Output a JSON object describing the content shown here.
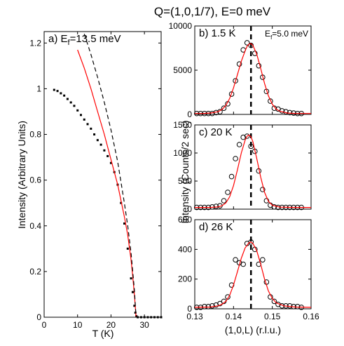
{
  "figure": {
    "title": "Q=(1,0,1/7), E=0 meV"
  },
  "colors": {
    "fit": "#ff0000",
    "dashed": "#000000",
    "data": "#000000"
  },
  "chart_data": [
    {
      "type": "scatter",
      "panel_label": "a)",
      "annotation": "E_f=13.5 meV",
      "xlabel": "T (K)",
      "ylabel": "Intensity (Arbitrary Units)",
      "xlim": [
        0,
        35
      ],
      "ylim": [
        0,
        1.25
      ],
      "xticks": [
        0,
        10,
        20,
        30
      ],
      "yticks": [
        0,
        0.2,
        0.4,
        0.6,
        0.8,
        1,
        1.2
      ],
      "series": [
        {
          "style": "points",
          "x": [
            3,
            4,
            5,
            6,
            7,
            8,
            9,
            10,
            11,
            12,
            13,
            14,
            15,
            16,
            17,
            18,
            19,
            20,
            21,
            22,
            23,
            24,
            25,
            26,
            26.5,
            27,
            27.3,
            27.6,
            28,
            29,
            30,
            31,
            32,
            33,
            34,
            35
          ],
          "y": [
            0.995,
            0.99,
            0.98,
            0.97,
            0.955,
            0.94,
            0.925,
            0.905,
            0.885,
            0.865,
            0.845,
            0.825,
            0.8,
            0.775,
            0.755,
            0.73,
            0.705,
            0.675,
            0.635,
            0.58,
            0.5,
            0.41,
            0.3,
            0.17,
            0.11,
            0.05,
            0.02,
            0.005,
            0,
            0,
            0,
            0,
            0,
            0,
            0,
            0
          ]
        },
        {
          "style": "fit",
          "x": [
            10,
            12,
            14,
            16,
            18,
            20,
            22,
            24,
            25,
            26,
            26.5,
            27,
            27.2,
            27.4,
            27.5
          ],
          "y": [
            1.17,
            1.09,
            1.0,
            0.9,
            0.8,
            0.69,
            0.58,
            0.44,
            0.36,
            0.25,
            0.18,
            0.1,
            0.06,
            0.02,
            0
          ]
        },
        {
          "style": "dashed",
          "x": [
            12,
            14,
            16,
            18,
            20,
            22,
            24,
            25,
            26,
            27,
            27.5
          ],
          "y": [
            1.24,
            1.15,
            1.05,
            0.94,
            0.82,
            0.68,
            0.5,
            0.4,
            0.28,
            0.12,
            0
          ]
        }
      ]
    },
    {
      "type": "scatter",
      "panel_label": "b) 1.5 K",
      "annotation": "E_f=5.0 meV",
      "xlim": [
        0.13,
        0.16
      ],
      "ylim": [
        0,
        10000
      ],
      "yticks": [
        0,
        5000,
        10000
      ],
      "vline": 0.1445,
      "series": [
        {
          "style": "points",
          "x": [
            0.1305,
            0.1315,
            0.1325,
            0.1335,
            0.1345,
            0.1355,
            0.1365,
            0.1375,
            0.1385,
            0.1395,
            0.1405,
            0.1415,
            0.1425,
            0.1435,
            0.1445,
            0.1455,
            0.1465,
            0.1475,
            0.1485,
            0.1495,
            0.1505,
            0.1515,
            0.1525,
            0.1535,
            0.1545,
            0.1555,
            0.1565,
            0.1575
          ],
          "y": [
            100,
            100,
            100,
            100,
            100,
            200,
            300,
            700,
            1200,
            2300,
            3800,
            5700,
            7300,
            8100,
            7800,
            6900,
            5500,
            4200,
            2600,
            1500,
            700,
            600,
            400,
            300,
            200,
            150,
            100,
            100
          ]
        },
        {
          "style": "fit",
          "x": [
            0.13,
            0.132,
            0.134,
            0.136,
            0.137,
            0.138,
            0.139,
            0.14,
            0.141,
            0.142,
            0.143,
            0.1435,
            0.144,
            0.1445,
            0.145,
            0.146,
            0.147,
            0.148,
            0.149,
            0.15,
            0.151,
            0.152,
            0.154,
            0.156,
            0.16
          ],
          "y": [
            100,
            100,
            150,
            300,
            550,
            1000,
            1800,
            3000,
            4500,
            6000,
            7200,
            7700,
            7950,
            8000,
            7800,
            6800,
            5200,
            3500,
            2100,
            1150,
            600,
            350,
            150,
            100,
            100
          ]
        }
      ]
    },
    {
      "type": "scatter",
      "panel_label": "c) 20 K",
      "ylabel": "Intensity (Counts/2 sec)",
      "xlim": [
        0.13,
        0.16
      ],
      "ylim": [
        0,
        1500
      ],
      "yticks": [
        0,
        500,
        1000,
        1500
      ],
      "vline": 0.1445,
      "series": [
        {
          "style": "points",
          "x": [
            0.1305,
            0.1315,
            0.1325,
            0.1335,
            0.1345,
            0.1355,
            0.1365,
            0.1375,
            0.1385,
            0.1395,
            0.1405,
            0.1415,
            0.1425,
            0.1435,
            0.1445,
            0.1455,
            0.1465,
            0.1475,
            0.1485,
            0.1495,
            0.1505,
            0.1515,
            0.1525,
            0.1535,
            0.1545,
            0.1555,
            0.1565,
            0.1575
          ],
          "y": [
            30,
            30,
            30,
            30,
            40,
            50,
            60,
            150,
            300,
            580,
            900,
            1150,
            1280,
            1300,
            1120,
            1030,
            680,
            350,
            150,
            70,
            40,
            30,
            30,
            30,
            30,
            30,
            30,
            30
          ]
        },
        {
          "style": "fit",
          "x": [
            0.13,
            0.134,
            0.136,
            0.137,
            0.138,
            0.139,
            0.14,
            0.141,
            0.142,
            0.143,
            0.1435,
            0.144,
            0.1445,
            0.145,
            0.146,
            0.147,
            0.148,
            0.149,
            0.15,
            0.152,
            0.156,
            0.16
          ],
          "y": [
            30,
            30,
            40,
            60,
            110,
            220,
            420,
            700,
            1000,
            1230,
            1300,
            1320,
            1290,
            1200,
            900,
            570,
            300,
            140,
            70,
            35,
            30,
            30
          ]
        }
      ]
    },
    {
      "type": "scatter",
      "panel_label": "d) 26 K",
      "xlabel": "(1,0,L) (r.l.u.)",
      "xlim": [
        0.13,
        0.16
      ],
      "ylim": [
        0,
        600
      ],
      "xticks": [
        0.13,
        0.14,
        0.15,
        0.16
      ],
      "yticks": [
        0,
        200,
        400,
        600
      ],
      "vline": 0.1445,
      "series": [
        {
          "style": "points",
          "x": [
            0.1305,
            0.1315,
            0.1325,
            0.1335,
            0.1345,
            0.1355,
            0.1365,
            0.1375,
            0.1385,
            0.1395,
            0.1405,
            0.1415,
            0.1425,
            0.1435,
            0.1445,
            0.1455,
            0.1465,
            0.1475,
            0.1485,
            0.1495,
            0.1505,
            0.1515,
            0.1525,
            0.1535,
            0.1545,
            0.1555,
            0.1565,
            0.1575
          ],
          "y": [
            10,
            10,
            15,
            15,
            20,
            25,
            35,
            50,
            80,
            160,
            330,
            310,
            300,
            440,
            450,
            400,
            300,
            330,
            180,
            80,
            50,
            30,
            20,
            20,
            20,
            15,
            15,
            10
          ]
        },
        {
          "style": "fit",
          "x": [
            0.13,
            0.134,
            0.136,
            0.137,
            0.138,
            0.139,
            0.14,
            0.141,
            0.142,
            0.143,
            0.144,
            0.1445,
            0.145,
            0.146,
            0.147,
            0.148,
            0.149,
            0.15,
            0.151,
            0.153,
            0.156,
            0.16
          ],
          "y": [
            10,
            12,
            20,
            30,
            50,
            90,
            160,
            250,
            340,
            410,
            445,
            450,
            440,
            390,
            300,
            200,
            120,
            70,
            40,
            20,
            12,
            10
          ]
        }
      ]
    }
  ]
}
